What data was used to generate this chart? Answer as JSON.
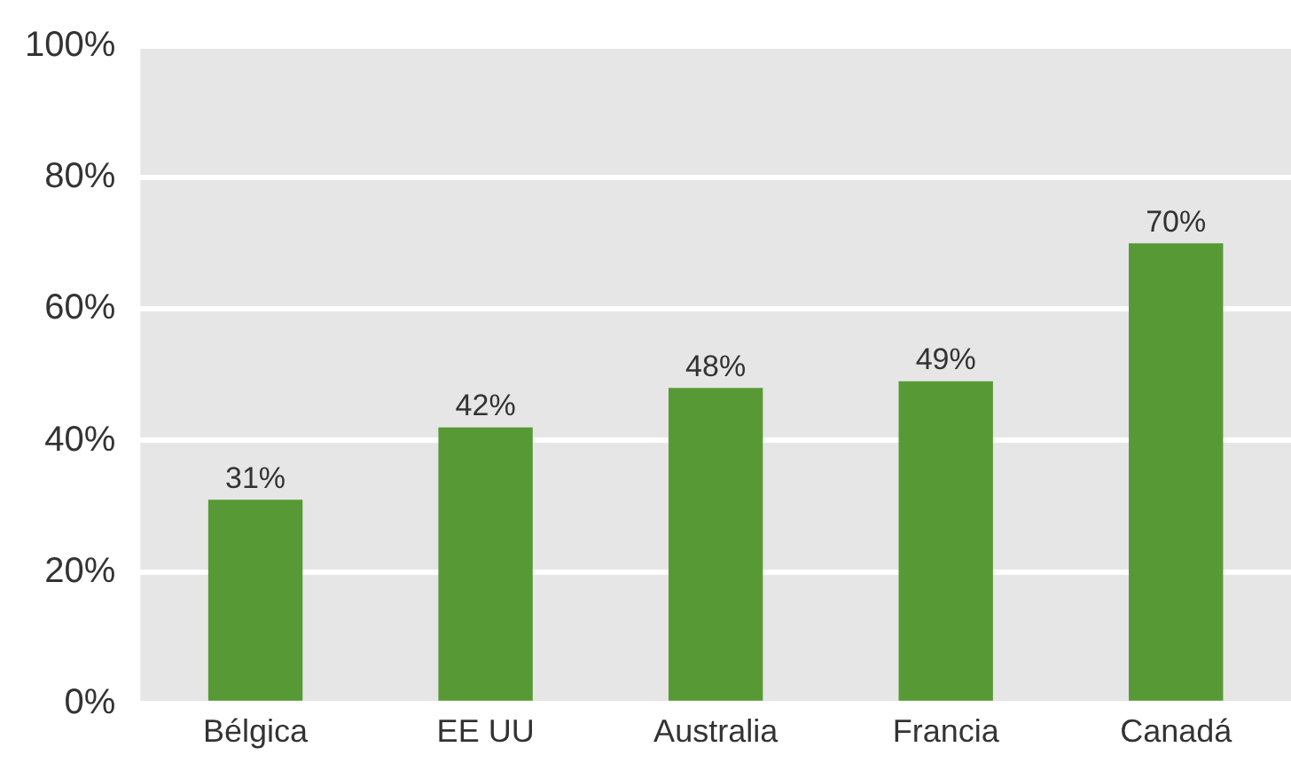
{
  "chart_data": {
    "type": "bar",
    "categories": [
      "Bélgica",
      "EE UU",
      "Australia",
      "Francia",
      "Canadá"
    ],
    "values": [
      31,
      42,
      48,
      49,
      70
    ],
    "color": "#579a35",
    "ylim": [
      0,
      100
    ],
    "yticks": [
      {
        "value": 0,
        "label": "0%"
      },
      {
        "value": 20,
        "label": "20%"
      },
      {
        "value": 40,
        "label": "40%"
      },
      {
        "value": 60,
        "label": "60%"
      },
      {
        "value": 80,
        "label": "80%"
      },
      {
        "value": 100,
        "label": "100%"
      }
    ],
    "grid": "y",
    "legend": false,
    "value_labels": [
      "31%",
      "42%",
      "48%",
      "49%",
      "70%"
    ]
  }
}
